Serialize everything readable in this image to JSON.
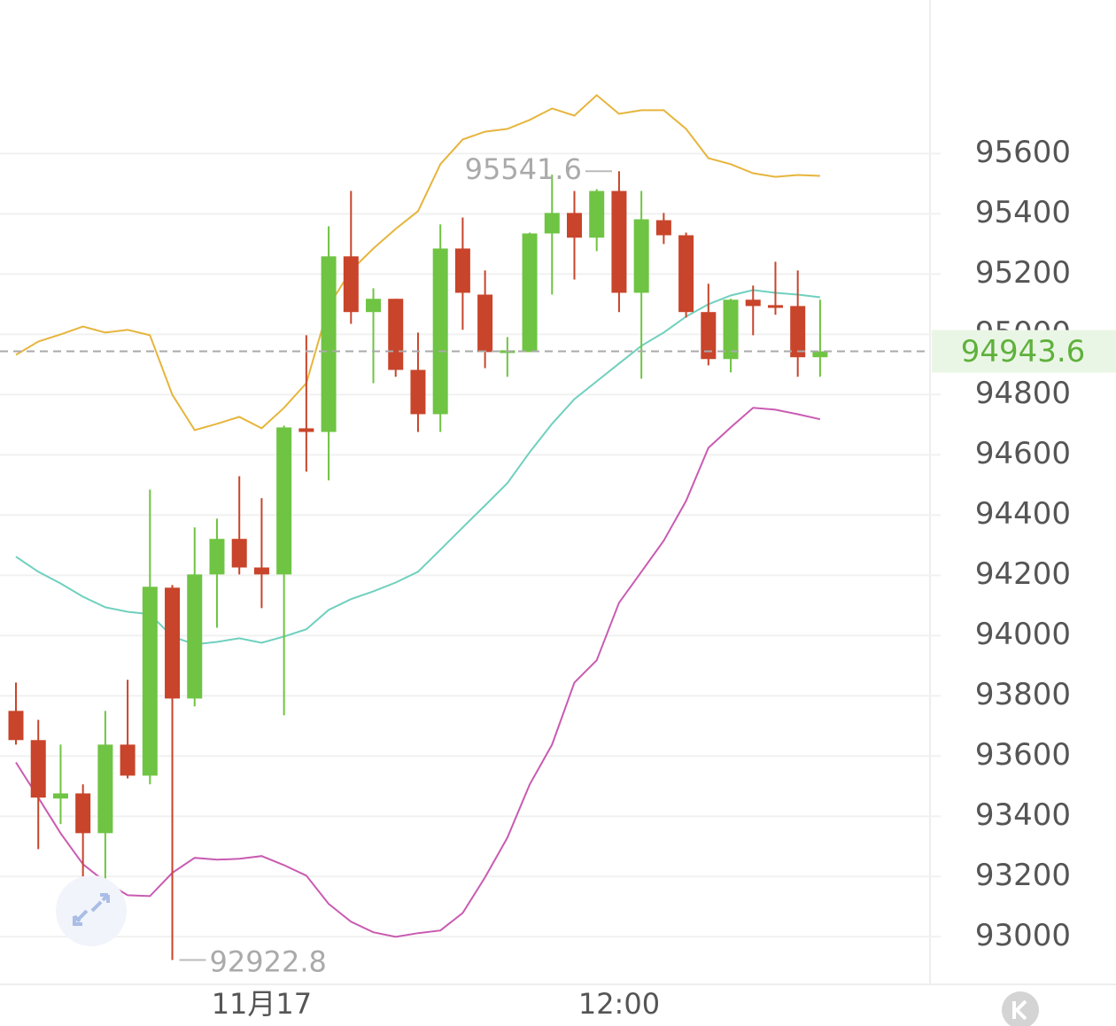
{
  "chart_data": {
    "type": "candlestick",
    "categories": [
      null,
      null,
      null,
      null,
      null,
      null,
      null,
      null,
      null,
      null,
      null,
      "11月17",
      null,
      null,
      null,
      null,
      null,
      null,
      null,
      null,
      null,
      null,
      null,
      null,
      null,
      null,
      null,
      "12:00",
      null,
      null,
      null,
      null,
      null,
      null,
      null,
      null,
      null
    ],
    "open": [
      93750,
      93653,
      93459,
      93476,
      93344,
      93638,
      93535,
      94159,
      93791,
      94203,
      94321,
      94226,
      94203,
      94688,
      94676,
      95259,
      95074,
      95118,
      94882,
      94735,
      95285,
      95132,
      94938,
      94941,
      95335,
      95403,
      95321,
      95476,
      95138,
      95379,
      95329,
      95074,
      94918,
      95115,
      95097,
      95094,
      94924
    ],
    "high": [
      93844,
      93720,
      93638,
      93506,
      93750,
      93853,
      94485,
      94168,
      94359,
      94388,
      94529,
      94456,
      94697,
      94997,
      95359,
      95476,
      95153,
      95118,
      95006,
      95365,
      95388,
      95212,
      94991,
      95338,
      95530,
      95476,
      95482,
      95541.6,
      95476,
      95403,
      95338,
      95168,
      95118,
      95162,
      95241,
      95212,
      95115
    ],
    "low": [
      93638,
      93291,
      93374,
      93006,
      93182,
      93526,
      93506,
      92922.8,
      93765,
      94026,
      94203,
      94091,
      93735,
      94544,
      94515,
      95035,
      94838,
      94859,
      94676,
      94676,
      95015,
      94888,
      94859,
      94941,
      95132,
      95182,
      95276,
      95074,
      94853,
      95300,
      95056,
      94897,
      94874,
      94997,
      95065,
      94859,
      94859
    ],
    "close": [
      93653,
      93462,
      93476,
      93344,
      93638,
      93535,
      94162,
      93791,
      94203,
      94321,
      94226,
      94203,
      94691,
      94676,
      95259,
      95074,
      95118,
      94882,
      94735,
      95285,
      95138,
      94941,
      94947,
      95335,
      95403,
      95321,
      95476,
      95138,
      95382,
      95329,
      95074,
      94918,
      95115,
      95094,
      95088,
      94924,
      94943.6
    ],
    "up_color": "#6fc443",
    "down_color": "#c8442a",
    "lines": [
      {
        "color": "#e6b53c",
        "values": [
          94932,
          94976,
          95000,
          95026,
          95006,
          95015,
          94997,
          94800,
          94682,
          94703,
          94726,
          94688,
          94756,
          94838,
          95094,
          95212,
          95285,
          95350,
          95409,
          95565,
          95647,
          95673,
          95682,
          95712,
          95750,
          95726,
          95794,
          95732,
          95744,
          95744,
          95682,
          95585,
          95565,
          95535,
          95523,
          95529,
          95526
        ]
      },
      {
        "color": "#6fd0be",
        "values": [
          94262,
          94212,
          94173,
          94129,
          94094,
          94079,
          94071,
          93997,
          93971,
          93979,
          93991,
          93976,
          93997,
          94021,
          94085,
          94121,
          94147,
          94176,
          94212,
          94285,
          94359,
          94432,
          94506,
          94609,
          94703,
          94785,
          94844,
          94903,
          94962,
          95006,
          95059,
          95100,
          95129,
          95147,
          95138,
          95132,
          95123
        ]
      },
      {
        "color": "#c95bb2",
        "values": [
          93579,
          93462,
          93344,
          93241,
          93182,
          93138,
          93135,
          93212,
          93262,
          93256,
          93259,
          93268,
          93238,
          93203,
          93109,
          93050,
          93015,
          93000,
          93012,
          93021,
          93079,
          93197,
          93329,
          93506,
          93638,
          93844,
          93918,
          94109,
          94212,
          94315,
          94447,
          94623,
          94691,
          94756,
          94750,
          94735,
          94718
        ]
      }
    ],
    "current_price": 94943.6,
    "ylim": [
      92845,
      96110
    ],
    "yticks": [
      93000,
      93200,
      93400,
      93600,
      93800,
      94000,
      94200,
      94400,
      94600,
      94800,
      95000,
      95200,
      95400,
      95600
    ],
    "grid": true
  }
}
